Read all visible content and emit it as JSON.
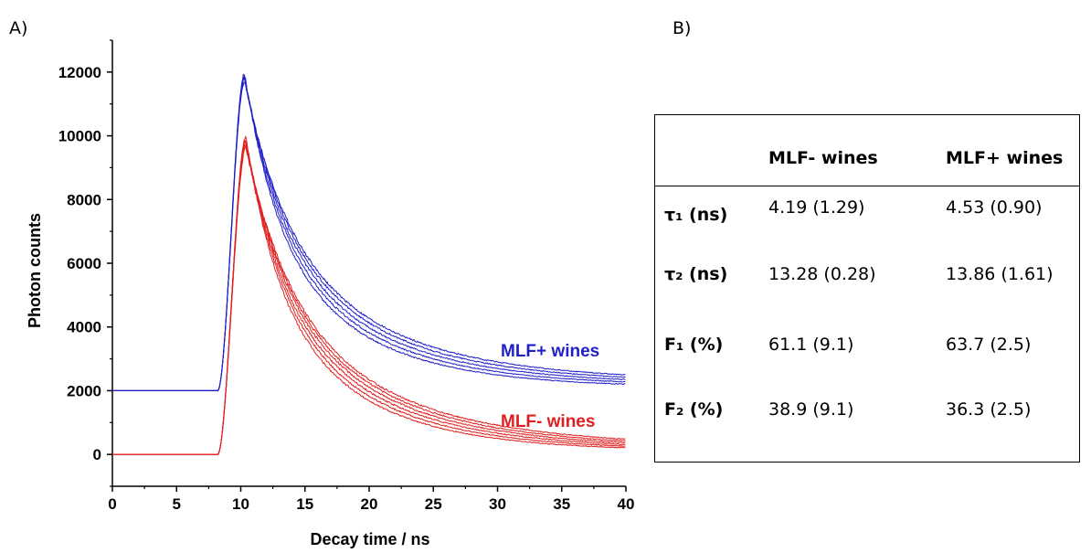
{
  "panels": {
    "a": "A)",
    "b": "B)"
  },
  "chart_data": {
    "type": "line",
    "xlabel": "Decay time / ns",
    "ylabel": "Photon counts",
    "xlim": [
      0,
      40
    ],
    "ylim": [
      -1000,
      13000
    ],
    "xticks": [
      0,
      5,
      10,
      15,
      20,
      25,
      30,
      35,
      40
    ],
    "yticks": [
      0,
      2000,
      4000,
      6000,
      8000,
      10000,
      12000
    ],
    "grid": false,
    "annotations": [
      {
        "text": "MLF+ wines",
        "color": "#1f1fc8"
      },
      {
        "text": "MLF- wines",
        "color": "#e02020"
      }
    ],
    "series_groups": [
      {
        "color": "#1f1fc8",
        "baseline": 2000,
        "onset": 8.2,
        "peak_x": 10.3,
        "curves": [
          {
            "peak": 11950,
            "tail": 2100
          },
          {
            "peak": 11900,
            "tail": 2150
          },
          {
            "peak": 11850,
            "tail": 2200
          },
          {
            "peak": 11800,
            "tail": 2250
          },
          {
            "peak": 11700,
            "tail": 2300
          }
        ]
      },
      {
        "color": "#e02020",
        "baseline": 0,
        "onset": 8.2,
        "peak_x": 10.4,
        "curves": [
          {
            "peak": 9950,
            "tail": 100
          },
          {
            "peak": 9900,
            "tail": 130
          },
          {
            "peak": 9850,
            "tail": 160
          },
          {
            "peak": 9800,
            "tail": 190
          },
          {
            "peak": 9700,
            "tail": 220
          },
          {
            "peak": 9600,
            "tail": 250
          }
        ]
      }
    ]
  },
  "table": {
    "headers": [
      "",
      "MLF- wines",
      "MLF+ wines"
    ],
    "rows": [
      {
        "label": "τ₁ (ns)",
        "values": [
          "4.19 (1.29)",
          "4.53 (0.90)"
        ]
      },
      {
        "label": "τ₂ (ns)",
        "values": [
          "13.28 (0.28)",
          "13.86 (1.61)"
        ]
      },
      {
        "label": "F₁ (%)",
        "values": [
          "61.1 (9.1)",
          "63.7 (2.5)"
        ]
      },
      {
        "label": "F₂ (%)",
        "values": [
          "38.9 (9.1)",
          "36.3 (2.5)"
        ]
      }
    ]
  }
}
